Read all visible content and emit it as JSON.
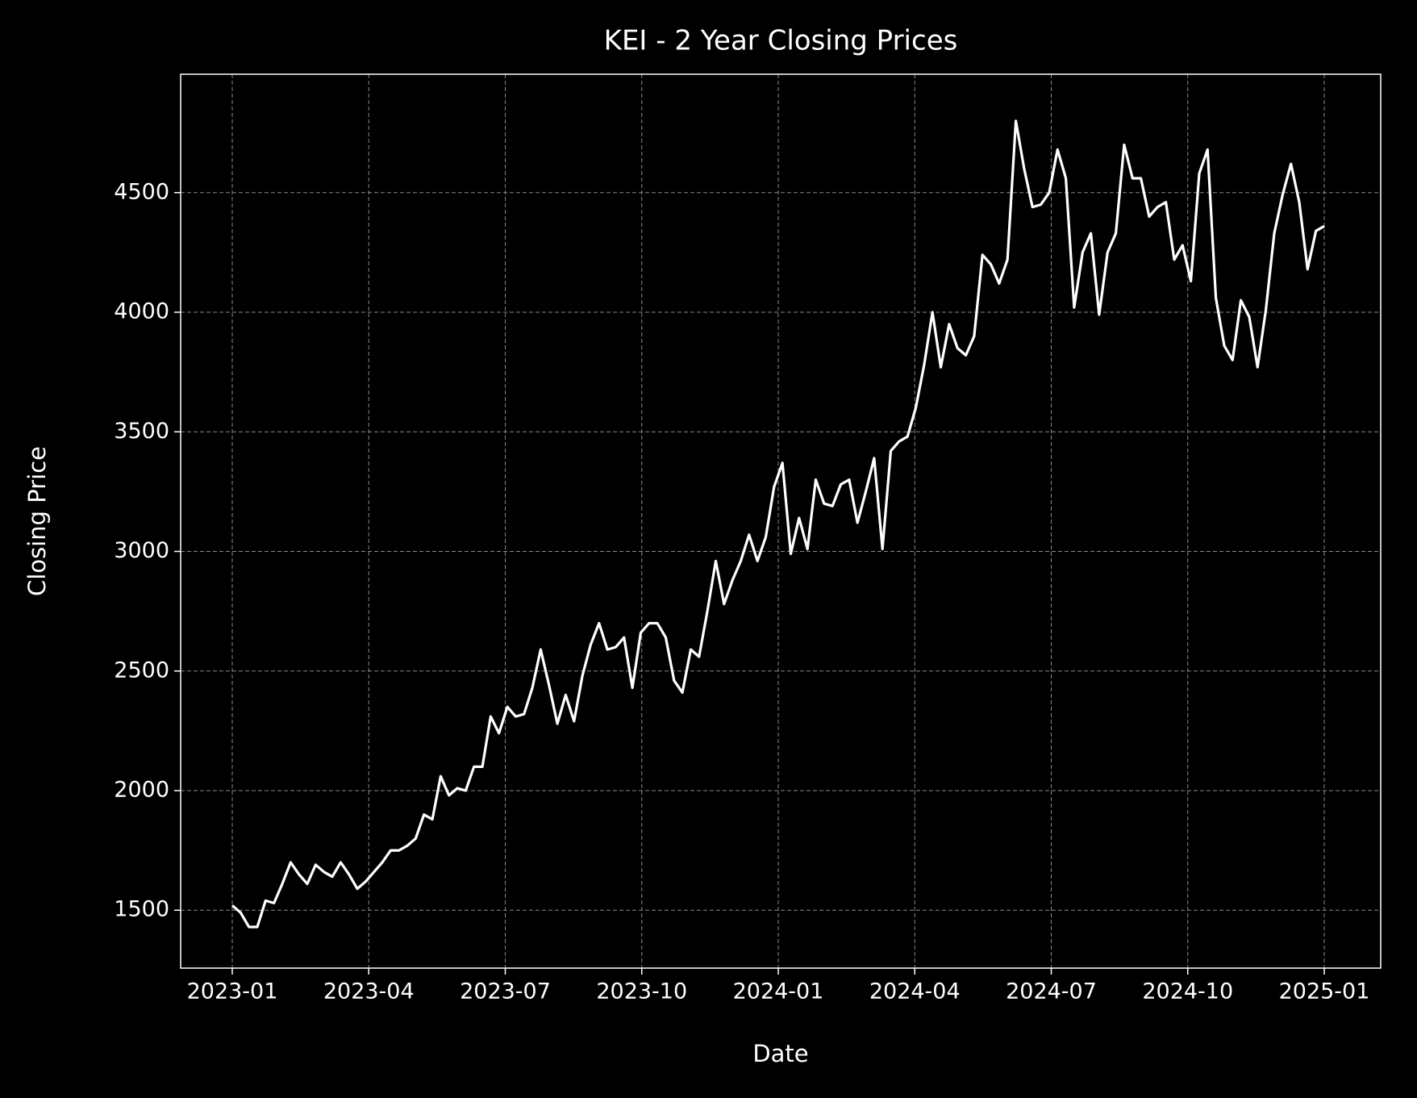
{
  "chart_data": {
    "type": "line",
    "title": "KEI - 2 Year Closing Prices",
    "xlabel": "Date",
    "ylabel": "Closing Price",
    "xticks": [
      "2023-01",
      "2023-04",
      "2023-07",
      "2023-10",
      "2024-01",
      "2024-04",
      "2024-07",
      "2024-10",
      "2025-01"
    ],
    "ylim": [
      1258,
      4995
    ],
    "yticks": [
      1500,
      2000,
      2500,
      3000,
      3500,
      4000,
      4500
    ],
    "grid": true,
    "series": [
      {
        "name": "KEI",
        "color": "#ffffff",
        "values": [
          1520,
          1490,
          1430,
          1430,
          1540,
          1530,
          1610,
          1700,
          1650,
          1610,
          1690,
          1660,
          1640,
          1700,
          1650,
          1590,
          1620,
          1660,
          1700,
          1750,
          1750,
          1770,
          1800,
          1900,
          1880,
          2060,
          1980,
          2010,
          2000,
          2100,
          2100,
          2310,
          2240,
          2350,
          2310,
          2320,
          2430,
          2590,
          2440,
          2280,
          2400,
          2290,
          2480,
          2610,
          2700,
          2590,
          2600,
          2640,
          2430,
          2660,
          2700,
          2700,
          2640,
          2460,
          2410,
          2590,
          2560,
          2750,
          2960,
          2780,
          2880,
          2960,
          3070,
          2960,
          3060,
          3270,
          3370,
          2990,
          3140,
          3010,
          3300,
          3200,
          3190,
          3280,
          3300,
          3120,
          3250,
          3390,
          3010,
          3420,
          3460,
          3480,
          3600,
          3780,
          4000,
          3770,
          3950,
          3850,
          3820,
          3900,
          4240,
          4200,
          4120,
          4220,
          4800,
          4600,
          4440,
          4450,
          4500,
          4680,
          4560,
          4020,
          4250,
          4330,
          3990,
          4250,
          4330,
          4700,
          4560,
          4560,
          4400,
          4440,
          4460,
          4220,
          4280,
          4130,
          4580,
          4680,
          4060,
          3860,
          3800,
          4050,
          3980,
          3770,
          4010,
          4330,
          4490,
          4620,
          4460,
          4180,
          4340,
          4360
        ]
      }
    ]
  }
}
